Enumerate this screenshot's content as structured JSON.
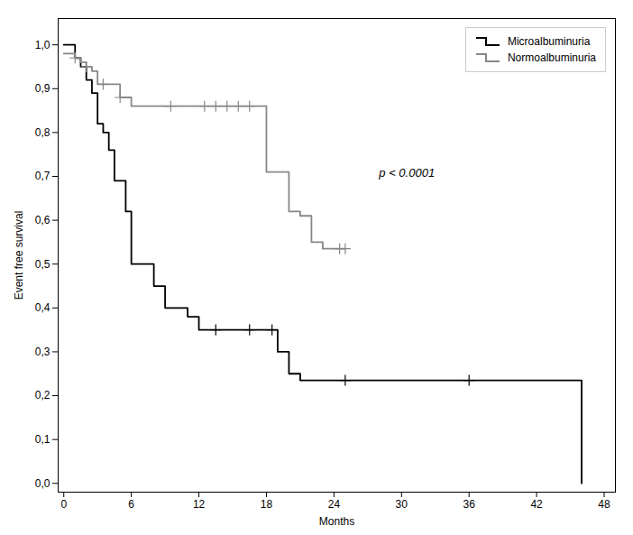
{
  "chart_data": {
    "type": "step",
    "xlabel": "Months",
    "ylabel": "Event free survival",
    "xlim": [
      -0.5,
      49
    ],
    "ylim": [
      -0.02,
      1.06
    ],
    "xticks": [
      0,
      6,
      12,
      18,
      24,
      30,
      36,
      42,
      48
    ],
    "yticks": [
      {
        "value": 0.0,
        "label": "0,0"
      },
      {
        "value": 0.1,
        "label": "0,1"
      },
      {
        "value": 0.2,
        "label": "0,2"
      },
      {
        "value": 0.3,
        "label": "0,3"
      },
      {
        "value": 0.4,
        "label": "0,4"
      },
      {
        "value": 0.5,
        "label": "0,5"
      },
      {
        "value": 0.6,
        "label": "0,6"
      },
      {
        "value": 0.7,
        "label": "0,7"
      },
      {
        "value": 0.8,
        "label": "0,8"
      },
      {
        "value": 0.9,
        "label": "0,9"
      },
      {
        "value": 1.0,
        "label": "1,0"
      }
    ],
    "grid": false,
    "legend": "upper right",
    "annotations": [
      {
        "text": "p < 0.0001",
        "x": 28,
        "y": 0.7
      }
    ],
    "series": [
      {
        "name": "Microalbuminuria",
        "color": "#000000",
        "marker": "+",
        "x": [
          0,
          1.0,
          1.5,
          2.0,
          2.5,
          3.0,
          3.5,
          4.0,
          4.5,
          5.0,
          5.5,
          6.0,
          7.0,
          8.0,
          9.0,
          10.0,
          11.0,
          12.0,
          13.0,
          14.0,
          15.0,
          16.0,
          17.0,
          18.0,
          19.0,
          20.0,
          21.0,
          22.0,
          23.0,
          24.0,
          25.0,
          36.0,
          44.5,
          46.0
        ],
        "values": [
          1.0,
          0.97,
          0.95,
          0.92,
          0.89,
          0.82,
          0.8,
          0.76,
          0.69,
          0.69,
          0.62,
          0.5,
          0.5,
          0.45,
          0.4,
          0.4,
          0.38,
          0.35,
          0.35,
          0.35,
          0.35,
          0.35,
          0.35,
          0.35,
          0.3,
          0.25,
          0.235,
          0.235,
          0.235,
          0.235,
          0.235,
          0.235,
          0.235,
          0.0
        ],
        "censor_x": [
          13.5,
          16.5,
          18.5,
          25.0,
          36.0
        ],
        "censor_values": [
          0.35,
          0.35,
          0.35,
          0.235,
          0.235
        ]
      },
      {
        "name": "Normoalbuminuria",
        "color": "#888888",
        "marker": "+",
        "x": [
          0,
          1.0,
          1.5,
          2.0,
          2.5,
          3.0,
          4.0,
          5.0,
          6.0,
          7.0,
          8.0,
          9.0,
          10.0,
          11.0,
          12.0,
          13.0,
          14.0,
          15.0,
          16.0,
          17.0,
          18.0,
          19.0,
          20.0,
          21.0,
          22.0,
          23.0,
          24.0,
          25.0
        ],
        "values": [
          0.98,
          0.97,
          0.96,
          0.95,
          0.94,
          0.91,
          0.91,
          0.88,
          0.86,
          0.86,
          0.86,
          0.86,
          0.86,
          0.86,
          0.86,
          0.86,
          0.86,
          0.86,
          0.86,
          0.86,
          0.71,
          0.71,
          0.62,
          0.61,
          0.55,
          0.535,
          0.535,
          0.535
        ],
        "censor_x": [
          1.0,
          2.0,
          3.5,
          5.0,
          9.5,
          12.5,
          13.5,
          14.5,
          15.5,
          16.5,
          24.5,
          25.0
        ],
        "censor_values": [
          0.97,
          0.95,
          0.91,
          0.88,
          0.86,
          0.86,
          0.86,
          0.86,
          0.86,
          0.86,
          0.535,
          0.535
        ]
      }
    ]
  }
}
